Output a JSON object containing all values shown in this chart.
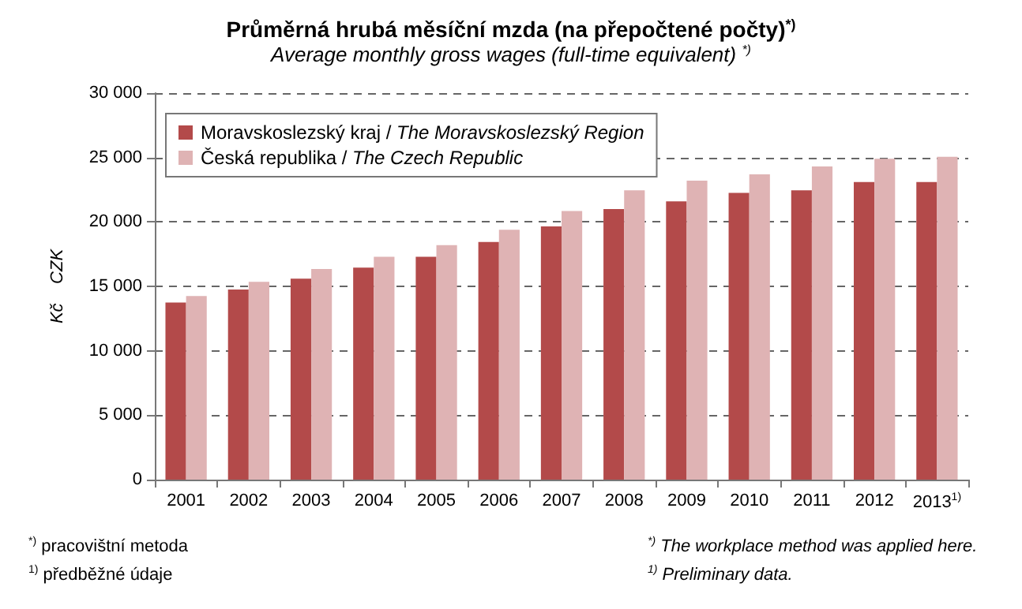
{
  "chart_data": {
    "type": "bar",
    "title": "Průměrná hrubá měsíční mzda (na přepočtené počty)$^{*)}$",
    "subtitle": "Average monthly gross wages (full-time equivalent) $^{*)}$",
    "ylabel": "Kč    CZK",
    "categories": [
      "2001",
      "2002",
      "2003",
      "2004",
      "2005",
      "2006",
      "2007",
      "2008",
      "2009",
      "2010",
      "2011",
      "2012",
      "2013$^{1)}$"
    ],
    "series": [
      {
        "name": "Moravskoslezský kraj / The Moravskoslezský Region",
        "color": "#b34a4a",
        "values": [
          13750,
          14750,
          15600,
          16450,
          17300,
          18450,
          19650,
          21000,
          21600,
          22250,
          22450,
          23100,
          23100
        ]
      },
      {
        "name": "Česká republika / The Czech Republic",
        "color": "#dfb3b4",
        "values": [
          14250,
          15350,
          16350,
          17300,
          18200,
          19400,
          20850,
          22450,
          23200,
          23700,
          24300,
          24900,
          25050
        ]
      }
    ],
    "ylim": [
      0,
      30000
    ],
    "yticks": [
      0,
      {
        "value": 5000,
        "label": "5 000"
      },
      {
        "value": 10000,
        "label": "10 000"
      },
      {
        "value": 15000,
        "label": "15 000"
      },
      {
        "value": 20000,
        "label": "20 000"
      },
      {
        "value": 25000,
        "label": "25 000"
      },
      {
        "value": 30000,
        "label": "30 000"
      }
    ],
    "grid": "y",
    "legend": "top left",
    "annotations": [
      "$^{*)}$ pracovištní metoda",
      "$^{1)}$ předběžné údaje",
      "$^{*)}$ The workplace method was applied here.",
      "$^{1)}$ Preliminary data."
    ]
  }
}
